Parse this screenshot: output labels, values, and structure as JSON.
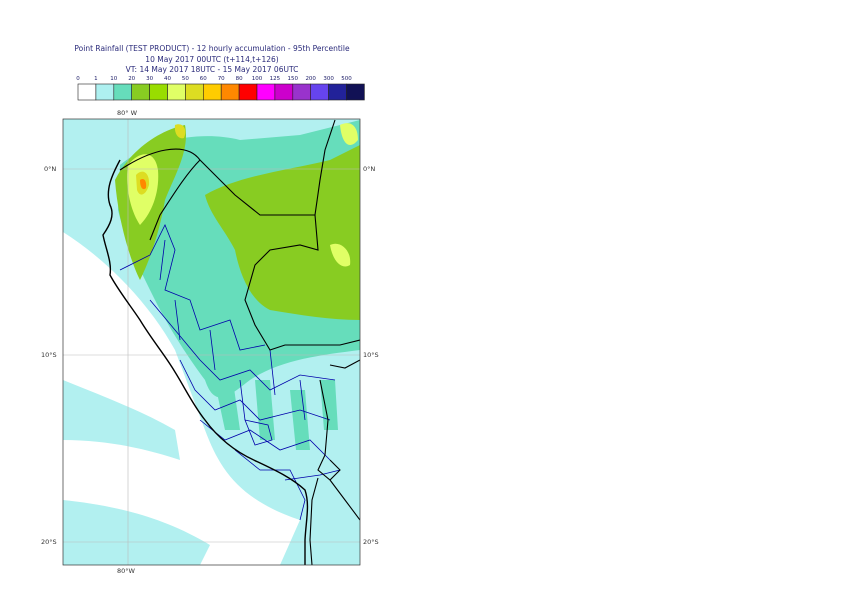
{
  "header": {
    "line1": "Point Rainfall (TEST PRODUCT) - 12 hourly accumulation - 95th Percentile",
    "line2": "10 May 2017 00UTC (t+114,t+126)",
    "line3": "VT: 14 May 2017 18UTC - 15 May 2017 06UTC"
  },
  "legend": {
    "thresholds": [
      "0",
      "1",
      "10",
      "20",
      "30",
      "40",
      "50",
      "60",
      "70",
      "80",
      "100",
      "125",
      "150",
      "200",
      "300",
      "500"
    ],
    "colors": [
      "#ffffff",
      "#aef0f0",
      "#66ddbb",
      "#88cc22",
      "#99dd00",
      "#e0ff66",
      "#dddd22",
      "#ffcc00",
      "#ff8800",
      "#ff0000",
      "#ff00ff",
      "#cc00cc",
      "#9933cc",
      "#6644ee",
      "#222299",
      "#111155"
    ]
  },
  "map": {
    "labels": {
      "lon_top": "80° W",
      "lon_bottom": "80°W",
      "lat_0_left": "0°N",
      "lat_0_right": "0°N",
      "lat_10_left": "10°S",
      "lat_10_right": "10°S",
      "lat_20_left": "20°S",
      "lat_20_right": "20°S"
    },
    "colors": {
      "sea_bg": "#b2f0f0",
      "low_band": "#ffffff",
      "mid": "#66ddbb",
      "high": "#88cc22",
      "coast": "#000000",
      "regions": "#0000aa",
      "grid": "#bbbbbb"
    }
  }
}
